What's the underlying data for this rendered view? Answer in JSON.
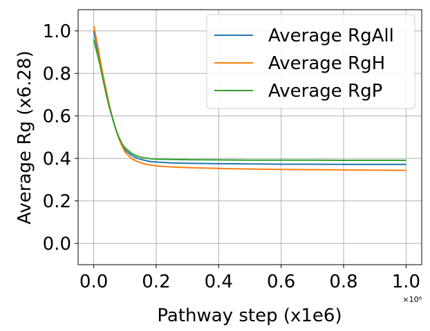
{
  "chart_data": {
    "type": "line",
    "title": "",
    "xlabel": "Pathway step (x1e6)",
    "ylabel": "Average Rg (x6.28)",
    "x_offset_label": "×10⁶",
    "xlim": [
      -0.05,
      1.05
    ],
    "ylim": [
      -0.1,
      1.1
    ],
    "xticks": [
      0.0,
      0.2,
      0.4,
      0.6,
      0.8,
      1.0
    ],
    "xtick_labels": [
      "0.0",
      "0.2",
      "0.4",
      "0.6",
      "0.8",
      "1.0"
    ],
    "yticks": [
      0.0,
      0.2,
      0.4,
      0.6,
      0.8,
      1.0
    ],
    "ytick_labels": [
      "0.0",
      "0.2",
      "0.4",
      "0.6",
      "0.8",
      "1.0"
    ],
    "grid": true,
    "legend_position": "top-right",
    "series": [
      {
        "name": "Average RgAll",
        "color": "#1f77b4",
        "x": [
          0.0,
          0.01,
          0.02,
          0.03,
          0.04,
          0.05,
          0.06,
          0.07,
          0.08,
          0.09,
          0.1,
          0.12,
          0.14,
          0.16,
          0.18,
          0.2,
          0.25,
          0.3,
          0.4,
          0.5,
          0.6,
          0.7,
          0.8,
          0.9,
          1.0
        ],
        "y": [
          1.0,
          0.93,
          0.86,
          0.79,
          0.72,
          0.65,
          0.59,
          0.54,
          0.5,
          0.47,
          0.44,
          0.415,
          0.4,
          0.392,
          0.386,
          0.383,
          0.379,
          0.377,
          0.375,
          0.374,
          0.373,
          0.373,
          0.372,
          0.372,
          0.372
        ]
      },
      {
        "name": "Average RgH",
        "color": "#ff7f0e",
        "x": [
          0.0,
          0.01,
          0.02,
          0.03,
          0.04,
          0.05,
          0.06,
          0.07,
          0.08,
          0.09,
          0.1,
          0.12,
          0.14,
          0.16,
          0.18,
          0.2,
          0.25,
          0.3,
          0.4,
          0.5,
          0.6,
          0.7,
          0.8,
          0.9,
          1.0
        ],
        "y": [
          1.025,
          0.95,
          0.87,
          0.79,
          0.72,
          0.65,
          0.59,
          0.54,
          0.495,
          0.46,
          0.43,
          0.4,
          0.385,
          0.375,
          0.369,
          0.365,
          0.36,
          0.357,
          0.353,
          0.35,
          0.348,
          0.347,
          0.346,
          0.345,
          0.344
        ]
      },
      {
        "name": "Average RgP",
        "color": "#2ca02c",
        "x": [
          0.0,
          0.01,
          0.02,
          0.03,
          0.04,
          0.05,
          0.06,
          0.07,
          0.08,
          0.09,
          0.1,
          0.12,
          0.14,
          0.16,
          0.18,
          0.2,
          0.25,
          0.3,
          0.4,
          0.5,
          0.6,
          0.7,
          0.8,
          0.9,
          1.0
        ],
        "y": [
          0.96,
          0.9,
          0.84,
          0.77,
          0.7,
          0.64,
          0.59,
          0.54,
          0.5,
          0.47,
          0.45,
          0.425,
          0.41,
          0.403,
          0.399,
          0.397,
          0.395,
          0.394,
          0.393,
          0.392,
          0.392,
          0.392,
          0.391,
          0.391,
          0.391
        ]
      }
    ]
  }
}
